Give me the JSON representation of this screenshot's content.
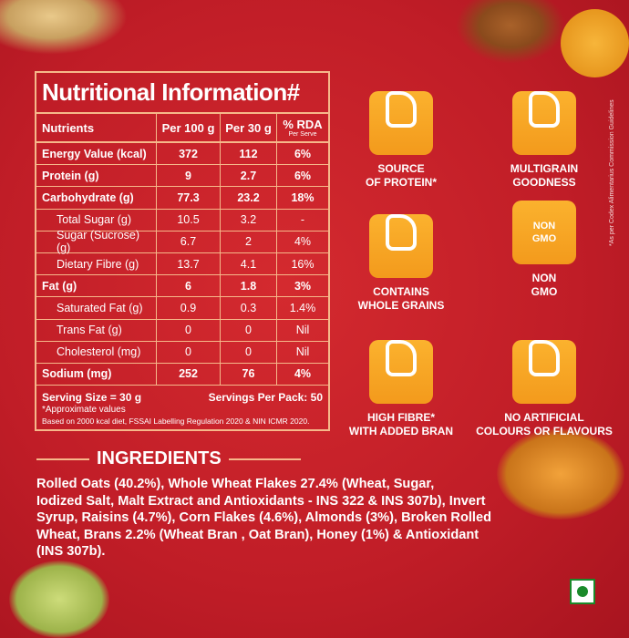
{
  "header": {
    "title": "Nutritional Information#"
  },
  "table": {
    "head": [
      "Nutrients",
      "Per 100 g",
      "Per 30 g",
      "% RDA"
    ],
    "head_note": "Per Serve",
    "rows": [
      [
        "Energy Value (kcal)",
        "372",
        "112",
        "6%"
      ],
      [
        "Protein (g)",
        "9",
        "2.7",
        "6%"
      ],
      [
        "Carbohydrate (g)",
        "77.3",
        "23.2",
        "18%"
      ],
      [
        "Total Sugar (g)",
        "10.5",
        "3.2",
        "-"
      ],
      [
        "Sugar (Sucrose) (g)",
        "6.7",
        "2",
        "4%"
      ],
      [
        "Dietary Fibre (g)",
        "13.7",
        "4.1",
        "16%"
      ],
      [
        "Fat (g)",
        "6",
        "1.8",
        "3%"
      ],
      [
        "Saturated Fat (g)",
        "0.9",
        "0.3",
        "1.4%"
      ],
      [
        "Trans Fat (g)",
        "0",
        "0",
        "Nil"
      ],
      [
        "Cholesterol (mg)",
        "0",
        "0",
        "Nil"
      ],
      [
        "Sodium (mg)",
        "252",
        "76",
        "4%"
      ]
    ],
    "serving_size": "Serving Size = 30 g",
    "servings_per_pack": "Servings Per Pack: 50",
    "notes": [
      "*Approximate values",
      "Based on 2000 kcal diet, FSSAI Labelling Regulation 2020 & NIN ICMR 2020."
    ]
  },
  "badges": [
    {
      "label": [
        "SOURCE",
        "OF PROTEIN*"
      ]
    },
    {
      "label": [
        "MULTIGRAIN",
        "GOODNESS"
      ]
    },
    {
      "label": [
        "CONTAINS",
        "WHOLE GRAINS"
      ]
    },
    {
      "label": [
        "NON",
        "GMO"
      ],
      "icon_text": [
        "NON",
        "GMO"
      ]
    },
    {
      "label": [
        "HIGH FIBRE*",
        "WITH ADDED BRAN"
      ]
    },
    {
      "label": [
        "NO ARTIFICIAL",
        "COLOURS OR FLAVOURS"
      ]
    }
  ],
  "side_note": "*As per Codex Alimentarius Commission Guidelines",
  "ingredients": {
    "title": "INGREDIENTS",
    "lines": [
      "Rolled Oats (40.2%), Whole Wheat Flakes 27.4% (Wheat, Sugar,",
      "Iodized Salt, Malt Extract and Antioxidants - INS 322 & INS 307b), Invert",
      "Syrup, Raisins (4.7%), Corn Flakes (4.6%), Almonds (3%), Broken Rolled",
      "Wheat, Brans 2.2% (Wheat Bran , Oat Bran), Honey (1%) & Antioxidant",
      "(INS 307b)."
    ]
  }
}
